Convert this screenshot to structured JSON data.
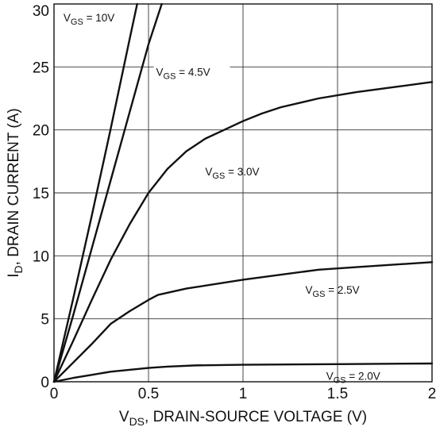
{
  "chart_data": {
    "type": "line",
    "xlabel": {
      "main": "V",
      "sub": "DS",
      "rest": ", DRAIN-SOURCE VOLTAGE (V)"
    },
    "ylabel": {
      "main": "I",
      "sub": "D",
      "rest": ", DRAIN CURRENT (A)"
    },
    "xlim": [
      0,
      2
    ],
    "ylim": [
      0,
      30
    ],
    "xticks": [
      "0",
      "0.5",
      "1",
      "1.5",
      "2"
    ],
    "yticks": [
      "0",
      "5",
      "10",
      "15",
      "20",
      "25",
      "30"
    ],
    "grid": true,
    "series": [
      {
        "name": {
          "main": "V",
          "sub": "GS",
          "rest": " = 10V"
        },
        "x": [
          0,
          0.1,
          0.2,
          0.3,
          0.4,
          0.44
        ],
        "y": [
          0,
          6.5,
          13.2,
          20.1,
          27.2,
          30
        ]
      },
      {
        "name": {
          "main": "V",
          "sub": "GS",
          "rest": " = 4.5V"
        },
        "x": [
          0,
          0.1,
          0.2,
          0.3,
          0.4,
          0.5,
          0.57
        ],
        "y": [
          0,
          5.2,
          10.6,
          16.0,
          21.4,
          26.8,
          30
        ]
      },
      {
        "name": {
          "main": "V",
          "sub": "GS",
          "rest": " = 3.0V"
        },
        "x": [
          0,
          0.1,
          0.2,
          0.3,
          0.4,
          0.5,
          0.6,
          0.7,
          0.8,
          0.9,
          1.0,
          1.1,
          1.2,
          1.4,
          1.6,
          1.8,
          2.0
        ],
        "y": [
          0,
          3.2,
          6.5,
          9.7,
          12.5,
          15.0,
          16.9,
          18.3,
          19.3,
          20.0,
          20.7,
          21.3,
          21.8,
          22.5,
          23.0,
          23.4,
          23.8
        ]
      },
      {
        "name": {
          "main": "V",
          "sub": "GS",
          "rest": " = 2.5V"
        },
        "x": [
          0,
          0.1,
          0.2,
          0.3,
          0.4,
          0.5,
          0.55,
          0.7,
          1.0,
          1.4,
          1.6,
          2.0
        ],
        "y": [
          0,
          1.5,
          3.0,
          4.6,
          5.6,
          6.5,
          6.9,
          7.4,
          8.1,
          8.9,
          9.1,
          9.5
        ]
      },
      {
        "name": {
          "main": "V",
          "sub": "GS",
          "rest": " = 2.0V"
        },
        "x": [
          0,
          0.1,
          0.2,
          0.3,
          0.4,
          0.5,
          0.6,
          0.75,
          1.0,
          1.5,
          2.0
        ],
        "y": [
          0,
          0.3,
          0.55,
          0.8,
          0.95,
          1.1,
          1.2,
          1.3,
          1.35,
          1.4,
          1.45
        ]
      }
    ]
  }
}
